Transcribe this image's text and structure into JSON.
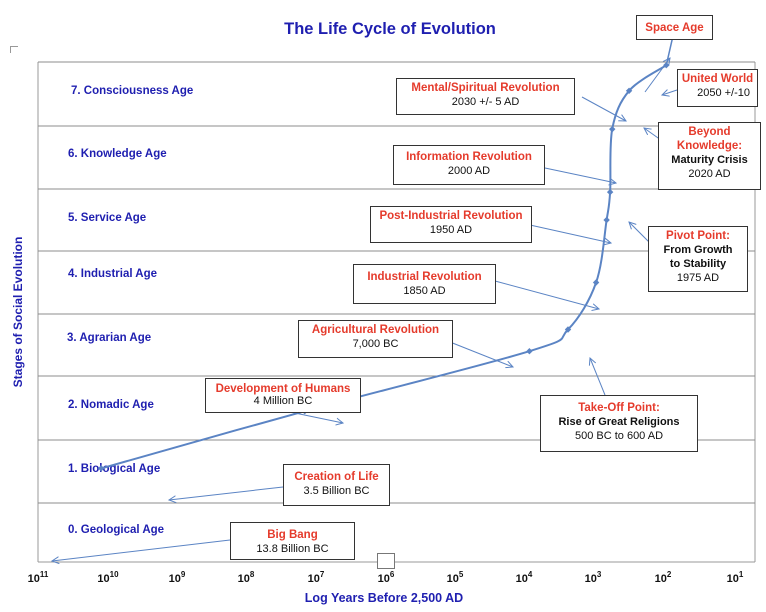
{
  "title": "The Life Cycle of Evolution",
  "y_axis_label": "Stages of Social Evolution",
  "x_axis_label": "Log Years Before 2,500 AD",
  "ages": [
    "0. Geological Age",
    "1. Biological Age",
    "2. Nomadic Age",
    "3. Agrarian Age",
    "4. Industrial Age",
    "5. Service Age",
    "6. Knowledge Age",
    "7. Consciousness Age"
  ],
  "x_ticks": [
    {
      "base": "10",
      "exp": "11"
    },
    {
      "base": "10",
      "exp": "10"
    },
    {
      "base": "10",
      "exp": "9"
    },
    {
      "base": "10",
      "exp": "8"
    },
    {
      "base": "10",
      "exp": "7"
    },
    {
      "base": "10",
      "exp": "6"
    },
    {
      "base": "10",
      "exp": "5"
    },
    {
      "base": "10",
      "exp": "4"
    },
    {
      "base": "10",
      "exp": "3"
    },
    {
      "base": "10",
      "exp": "2"
    },
    {
      "base": "10",
      "exp": "1"
    }
  ],
  "curve_points": [
    {
      "log_years": 10.1,
      "stage": 1.55
    },
    {
      "log_years": 7.2,
      "stage": 2.45
    },
    {
      "log_years": 4.0,
      "stage": 3.4
    },
    {
      "log_years": 3.45,
      "stage": 3.75
    },
    {
      "log_years": 3.05,
      "stage": 4.5
    },
    {
      "log_years": 2.9,
      "stage": 5.5
    },
    {
      "log_years": 2.85,
      "stage": 5.95
    },
    {
      "log_years": 2.82,
      "stage": 6.95
    },
    {
      "log_years": 2.58,
      "stage": 7.55
    },
    {
      "log_years": 2.05,
      "stage": 7.95
    }
  ],
  "callouts": {
    "space_age": {
      "title": "Space Age"
    },
    "united_world": {
      "title": "United World",
      "sub": "2050 +/-10"
    },
    "mental": {
      "title": "Mental/Spiritual Revolution",
      "sub": "2030 +/- 5 AD"
    },
    "beyond": {
      "title_1": "Beyond",
      "title_2": "Knowledge:",
      "sub_1": "Maturity Crisis",
      "sub_2": "2020 AD"
    },
    "information": {
      "title": "Information Revolution",
      "sub": "2000 AD"
    },
    "post_industrial": {
      "title": "Post-Industrial Revolution",
      "sub": "1950 AD"
    },
    "pivot": {
      "title": "Pivot Point:",
      "sub_1": "From Growth",
      "sub_2": "to Stability",
      "sub_3": "1975 AD"
    },
    "industrial": {
      "title": "Industrial Revolution",
      "sub": "1850 AD"
    },
    "agricultural": {
      "title": "Agricultural Revolution",
      "sub": "7,000 BC"
    },
    "humans": {
      "title": "Development of Humans",
      "sub": "4 Million BC"
    },
    "takeoff": {
      "title": "Take-Off Point:",
      "sub_1": "Rise of Great Religions",
      "sub_2": "500 BC to 600 AD"
    },
    "life": {
      "title": "Creation of Life",
      "sub": "3.5 Billion BC"
    },
    "big_bang": {
      "title": "Big Bang",
      "sub": "13.8 Billion BC"
    }
  },
  "colors": {
    "title": "#1f1fb0",
    "axis_label": "#1f1fb0",
    "age_label": "#1f1fb0",
    "curve": "#5b84c4",
    "callout_title": "#e53b2c",
    "gridline": "#8c8c8c"
  }
}
